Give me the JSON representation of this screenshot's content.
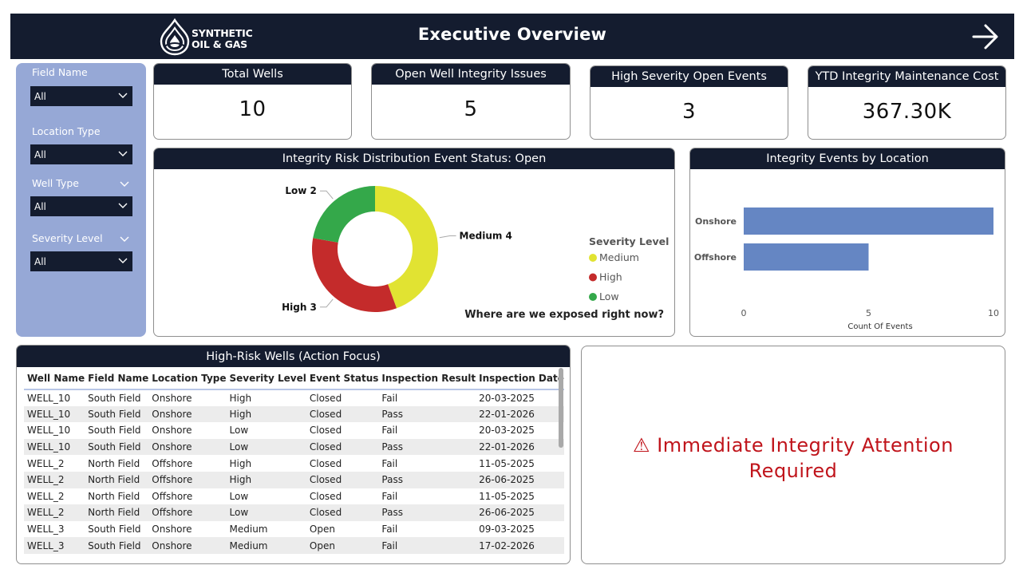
{
  "header": {
    "logo_line1": "SYNTHETIC",
    "logo_line2": "OIL & GAS",
    "title": "Executive Overview"
  },
  "filters": [
    {
      "label": "Field Name",
      "value": "All"
    },
    {
      "label": "Location Type",
      "value": "All"
    },
    {
      "label": "Well Type",
      "value": "All"
    },
    {
      "label": "Severity Level",
      "value": "All"
    }
  ],
  "kpis": [
    {
      "title": "Total Wells",
      "value": "10"
    },
    {
      "title": "Open Well Integrity Issues",
      "value": "5"
    },
    {
      "title": "High Severity Open Events",
      "value": "3"
    },
    {
      "title": "YTD Integrity Maintenance Cost",
      "value": "367.30K"
    }
  ],
  "donut_panel": {
    "title": "Integrity Risk Distribution Event Status: Open",
    "question": "Where are we exposed right now?"
  },
  "bar_panel": {
    "title": "Integrity Events by Location"
  },
  "table": {
    "title": "High-Risk Wells (Action Focus)",
    "columns": [
      "Well Name",
      "Field Name",
      "Location Type",
      "Severity Level",
      "Event Status",
      "Inspection Result",
      "Inspection Date"
    ],
    "rows": [
      [
        "WELL_10",
        "South Field",
        "Onshore",
        "High",
        "Closed",
        "Fail",
        "20-03-2025"
      ],
      [
        "WELL_10",
        "South Field",
        "Onshore",
        "High",
        "Closed",
        "Pass",
        "22-01-2026"
      ],
      [
        "WELL_10",
        "South Field",
        "Onshore",
        "Low",
        "Closed",
        "Fail",
        "20-03-2025"
      ],
      [
        "WELL_10",
        "South Field",
        "Onshore",
        "Low",
        "Closed",
        "Pass",
        "22-01-2026"
      ],
      [
        "WELL_2",
        "North Field",
        "Offshore",
        "High",
        "Closed",
        "Fail",
        "11-05-2025"
      ],
      [
        "WELL_2",
        "North Field",
        "Offshore",
        "High",
        "Closed",
        "Pass",
        "26-06-2025"
      ],
      [
        "WELL_2",
        "North Field",
        "Offshore",
        "Low",
        "Closed",
        "Fail",
        "11-05-2025"
      ],
      [
        "WELL_2",
        "North Field",
        "Offshore",
        "Low",
        "Closed",
        "Pass",
        "26-06-2025"
      ],
      [
        "WELL_3",
        "South Field",
        "Onshore",
        "Medium",
        "Open",
        "Fail",
        "09-03-2025"
      ],
      [
        "WELL_3",
        "South Field",
        "Onshore",
        "Medium",
        "Open",
        "Fail",
        "17-02-2026"
      ]
    ]
  },
  "alert": {
    "line1": "⚠ Immediate Integrity Attention",
    "line2": "Required",
    "color": "#c0141b"
  },
  "chart_data": [
    {
      "type": "pie",
      "title": "Integrity Risk Distribution Event Status: Open",
      "legend_title": "Severity Level",
      "legend_position": "right",
      "labels": [
        "Medium",
        "High",
        "Low"
      ],
      "values": [
        4,
        3,
        2
      ],
      "colors": [
        "#e1e332",
        "#c42b2b",
        "#34a84a"
      ],
      "donut": true
    },
    {
      "type": "bar",
      "orientation": "horizontal",
      "title": "Integrity Events by Location",
      "categories": [
        "Onshore",
        "Offshore"
      ],
      "values": [
        10,
        5
      ],
      "xlabel": "Count Of Events",
      "xticks": [
        "0",
        "5",
        "10"
      ],
      "xlim": [
        0,
        10
      ],
      "color": "#6586c3"
    }
  ]
}
